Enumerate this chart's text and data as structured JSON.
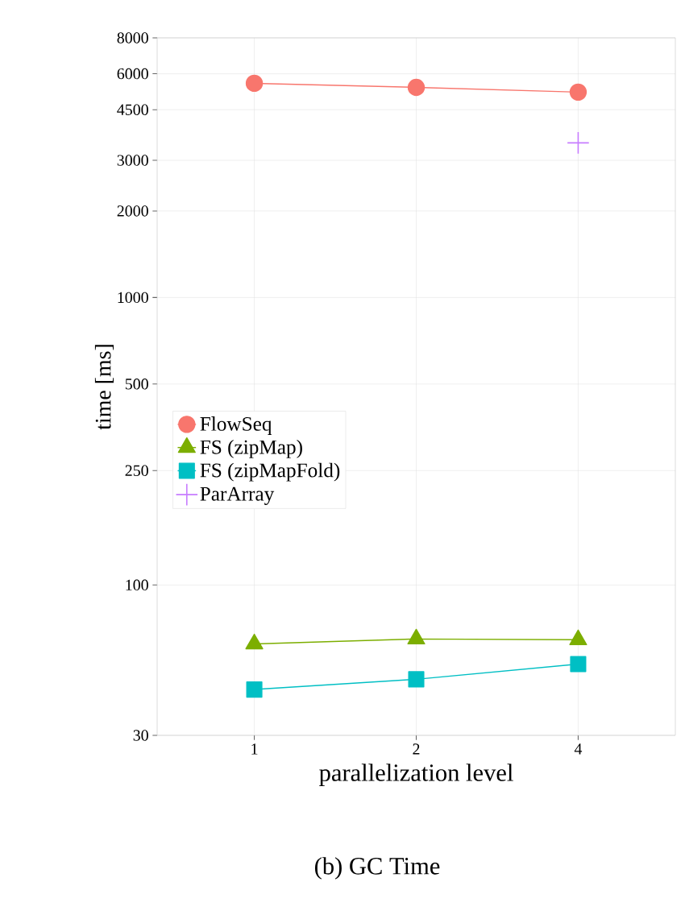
{
  "chart_data": {
    "type": "line",
    "title": "(b) GC Time",
    "xlabel": "parallelization level",
    "ylabel": "time [ms]",
    "categories": [
      "1",
      "2",
      "4"
    ],
    "series": [
      {
        "name": "FlowSeq",
        "color": "#f8766d",
        "marker": "circle",
        "values": [
          5560,
          5380,
          5180
        ]
      },
      {
        "name": "FS (zipMap)",
        "color": "#7cae00",
        "marker": "triangle",
        "values": [
          62.4,
          64.9,
          64.5
        ]
      },
      {
        "name": "FS (zipMapFold)",
        "color": "#00bfc4",
        "marker": "square",
        "values": [
          43.3,
          47.0,
          53.1
        ]
      },
      {
        "name": "ParArray",
        "type": "scatter",
        "color": "#c77cff",
        "marker": "cross",
        "values": [
          null,
          null,
          3450
        ]
      }
    ],
    "log": "y",
    "ylim": [
      30,
      8000
    ],
    "yticks": [
      30,
      100,
      250,
      500,
      1000,
      2000,
      3000,
      4500,
      6000,
      8000
    ],
    "grid": true,
    "legend": "left"
  }
}
